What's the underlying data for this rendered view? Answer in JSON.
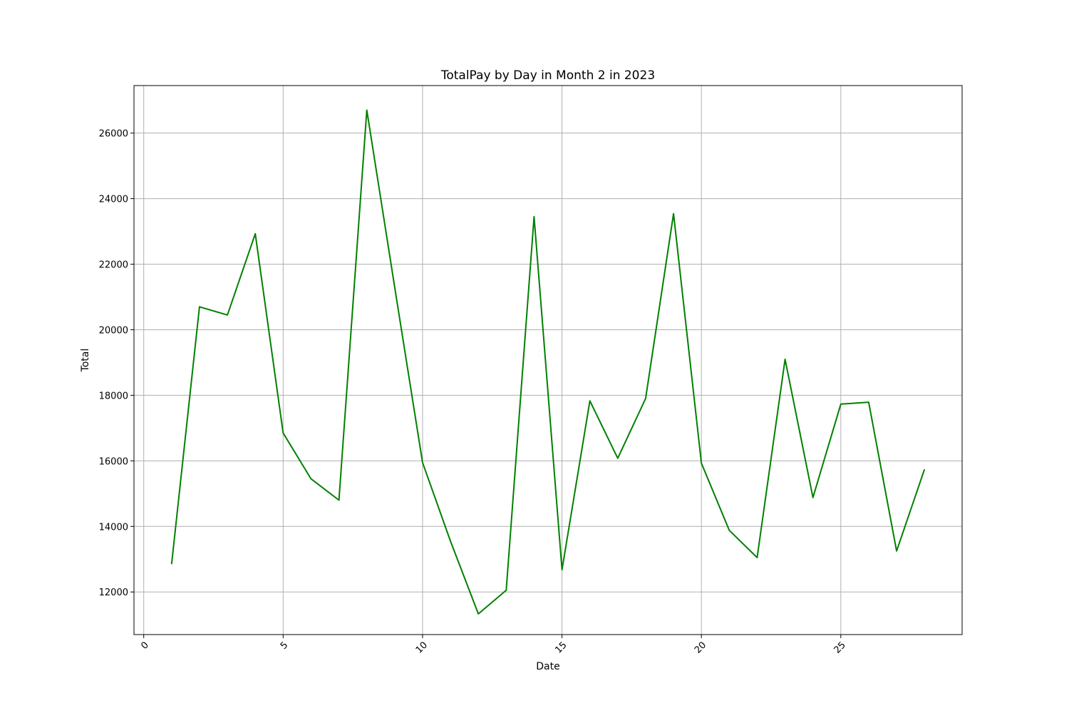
{
  "chart_data": {
    "type": "line",
    "title": "TotalPay by Day in Month 2 in 2023",
    "xlabel": "Date",
    "ylabel": "Total",
    "xlim": [
      -0.35,
      29.35
    ],
    "ylim": [
      10700,
      27450
    ],
    "x_ticks": [
      0,
      5,
      10,
      15,
      20,
      25
    ],
    "y_ticks": [
      12000,
      14000,
      16000,
      18000,
      20000,
      22000,
      24000,
      26000
    ],
    "grid": true,
    "legend": "none",
    "colors": {
      "line": "#008000",
      "grid": "#b0b0b0",
      "axes": "#000000"
    },
    "series": [
      {
        "x": [
          1,
          2,
          3,
          4,
          5,
          6,
          7,
          8,
          9,
          10,
          11,
          12,
          13,
          14,
          15,
          16,
          17,
          18,
          19,
          20,
          21,
          22,
          23,
          24,
          25,
          26,
          27,
          28
        ],
        "values": [
          12850,
          20700,
          20450,
          22930,
          16850,
          15450,
          14800,
          26700,
          21300,
          15950,
          13550,
          11330,
          12050,
          23450,
          12680,
          17830,
          16080,
          17900,
          23540,
          15930,
          13880,
          13050,
          19100,
          14880,
          17730,
          17790,
          13250,
          15740
        ]
      }
    ]
  }
}
